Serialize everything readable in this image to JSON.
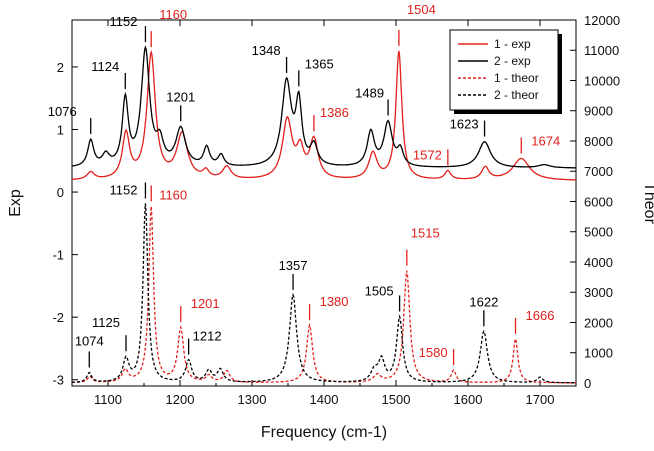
{
  "chart_data": {
    "type": "line",
    "xlabel": "Frequency (cm-1)",
    "ylabel_left": "Exp",
    "ylabel_right": "Theor",
    "xlim": [
      1050,
      1750
    ],
    "ylim_left": [
      -3.1,
      2.75
    ],
    "ylim_right": [
      -100,
      12000
    ],
    "x_ticks": [
      1100,
      1200,
      1300,
      1400,
      1500,
      1600,
      1700
    ],
    "y_left_ticks": [
      -3,
      -2,
      -1,
      0,
      1,
      2
    ],
    "y_right_ticks": [
      0,
      1000,
      2000,
      3000,
      4000,
      5000,
      6000,
      7000,
      8000,
      9000,
      10000,
      11000,
      12000
    ],
    "grid": false,
    "legend_position": "top-right",
    "colors": {
      "red": "#e0201b",
      "black": "#000000"
    },
    "series": [
      {
        "name": "1 - exp",
        "style": "solid",
        "color": "#e0201b",
        "axis": "left",
        "baseline": 0.18,
        "peaks": [
          [
            1076,
            0.12,
            6
          ],
          [
            1125,
            0.72,
            6
          ],
          [
            1160,
            2.0,
            7
          ],
          [
            1203,
            0.72,
            9
          ],
          [
            1236,
            0.12,
            5
          ],
          [
            1265,
            0.2,
            7
          ],
          [
            1349,
            0.95,
            8
          ],
          [
            1367,
            0.42,
            6
          ],
          [
            1386,
            0.62,
            7
          ],
          [
            1468,
            0.42,
            7
          ],
          [
            1504,
            2.05,
            5
          ],
          [
            1572,
            0.14,
            5
          ],
          [
            1624,
            0.2,
            6
          ],
          [
            1674,
            0.35,
            14
          ]
        ],
        "markers": [
          1504,
          1572,
          1674
        ]
      },
      {
        "name": "2 - exp",
        "style": "solid",
        "color": "#000000",
        "axis": "left",
        "baseline": 0.38,
        "peaks": [
          [
            1076,
            0.42,
            5
          ],
          [
            1097,
            0.18,
            6
          ],
          [
            1124,
            1.05,
            5
          ],
          [
            1152,
            1.85,
            7
          ],
          [
            1172,
            0.35,
            6
          ],
          [
            1201,
            0.6,
            8
          ],
          [
            1237,
            0.3,
            5
          ],
          [
            1257,
            0.18,
            5
          ],
          [
            1348,
            1.35,
            8
          ],
          [
            1365,
            0.95,
            5
          ],
          [
            1386,
            0.32,
            6
          ],
          [
            1465,
            0.55,
            6
          ],
          [
            1489,
            0.7,
            7
          ],
          [
            1506,
            0.25,
            5
          ],
          [
            1623,
            0.42,
            10
          ],
          [
            1706,
            0.05,
            10
          ]
        ],
        "markers": [
          1076,
          1124,
          1152,
          1201,
          1348,
          1365,
          1489,
          1623
        ]
      },
      {
        "name": "1 - theor",
        "style": "dashed",
        "color": "#e0201b",
        "axis": "right",
        "baseline": 0,
        "peaks": [
          [
            1075,
            200,
            4
          ],
          [
            1124,
            400,
            5
          ],
          [
            1160,
            5800,
            4
          ],
          [
            1201,
            1780,
            5
          ],
          [
            1240,
            220,
            5
          ],
          [
            1265,
            380,
            5
          ],
          [
            1380,
            1900,
            5
          ],
          [
            1474,
            250,
            6
          ],
          [
            1515,
            3700,
            5
          ],
          [
            1580,
            400,
            4
          ],
          [
            1666,
            1450,
            4
          ]
        ],
        "markers": [
          1160,
          1201,
          1380,
          1515,
          1580,
          1666
        ]
      },
      {
        "name": "2 - theor",
        "style": "dashed",
        "color": "#000000",
        "axis": "right",
        "baseline": 0,
        "peaks": [
          [
            1074,
            320,
            4
          ],
          [
            1125,
            750,
            5
          ],
          [
            1152,
            5900,
            4
          ],
          [
            1212,
            720,
            5
          ],
          [
            1240,
            380,
            5
          ],
          [
            1256,
            420,
            5
          ],
          [
            1357,
            2900,
            6
          ],
          [
            1470,
            380,
            6
          ],
          [
            1480,
            700,
            5
          ],
          [
            1505,
            2150,
            5
          ],
          [
            1622,
            1700,
            6
          ],
          [
            1700,
            180,
            5
          ]
        ],
        "markers": [
          1074,
          1125,
          1152,
          1212,
          1357,
          1505,
          1622
        ]
      }
    ],
    "annotations": [
      {
        "text": "1076",
        "x": 1076,
        "series": "2 - exp"
      },
      {
        "text": "1124",
        "x": 1124,
        "series": "2 - exp"
      },
      {
        "text": "1152",
        "x": 1152,
        "series": "2 - exp"
      },
      {
        "text": "1160",
        "x": 1160,
        "series": "1 - exp"
      },
      {
        "text": "1201",
        "x": 1201,
        "series": "2 - exp"
      },
      {
        "text": "1348",
        "x": 1348,
        "series": "2 - exp"
      },
      {
        "text": "1365",
        "x": 1365,
        "series": "2 - exp"
      },
      {
        "text": "1386",
        "x": 1386,
        "series": "1 - exp"
      },
      {
        "text": "1489",
        "x": 1489,
        "series": "2 - exp"
      },
      {
        "text": "1504",
        "x": 1504,
        "series": "1 - exp"
      },
      {
        "text": "1572",
        "x": 1572,
        "series": "1 - exp"
      },
      {
        "text": "1623",
        "x": 1623,
        "series": "2 - exp"
      },
      {
        "text": "1674",
        "x": 1674,
        "series": "1 - exp"
      },
      {
        "text": "1152",
        "x": 1152,
        "series": "2 - theor"
      },
      {
        "text": "1160",
        "x": 1160,
        "series": "1 - theor"
      },
      {
        "text": "1074",
        "x": 1074,
        "series": "2 - theor"
      },
      {
        "text": "1125",
        "x": 1125,
        "series": "2 - theor"
      },
      {
        "text": "1201",
        "x": 1201,
        "series": "1 - theor"
      },
      {
        "text": "1212",
        "x": 1212,
        "series": "2 - theor"
      },
      {
        "text": "1357",
        "x": 1357,
        "series": "2 - theor"
      },
      {
        "text": "1380",
        "x": 1380,
        "series": "1 - theor"
      },
      {
        "text": "1505",
        "x": 1505,
        "series": "2 - theor"
      },
      {
        "text": "1515",
        "x": 1515,
        "series": "1 - theor"
      },
      {
        "text": "1580",
        "x": 1580,
        "series": "1 - theor"
      },
      {
        "text": "1622",
        "x": 1622,
        "series": "2 - theor"
      },
      {
        "text": "1666",
        "x": 1666,
        "series": "1 - theor"
      }
    ]
  }
}
